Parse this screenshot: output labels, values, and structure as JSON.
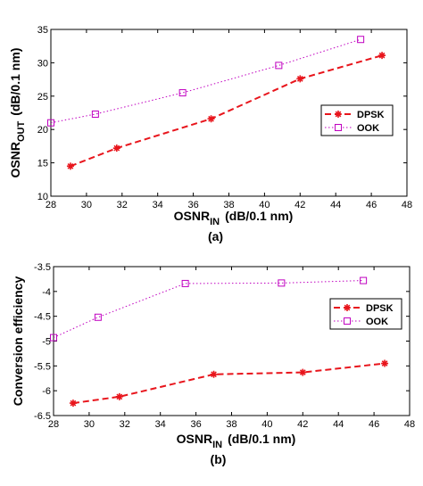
{
  "chart_data": [
    {
      "type": "line",
      "caption": "(a)",
      "xlabel": "OSNR",
      "xlabel_sub": "IN",
      "xlabel_unit": "(dB/0.1 nm)",
      "ylabel": "OSNR",
      "ylabel_sub": "OUT",
      "ylabel_unit": "(dB/0.1 nm)",
      "xlim": [
        28,
        48
      ],
      "ylim": [
        10,
        35
      ],
      "xticks": [
        28,
        30,
        32,
        34,
        36,
        38,
        40,
        42,
        44,
        46,
        48
      ],
      "yticks": [
        10,
        15,
        20,
        25,
        30,
        35
      ],
      "legend_position": "right",
      "series": [
        {
          "name": "DPSK",
          "color": "#e8151c",
          "x": [
            29.1,
            31.7,
            37.0,
            42.0,
            46.6
          ],
          "y": [
            14.5,
            17.2,
            21.6,
            27.6,
            31.1
          ]
        },
        {
          "name": "OOK",
          "color": "#c000c0",
          "x": [
            28.0,
            30.5,
            35.4,
            40.8,
            45.4
          ],
          "y": [
            21.0,
            22.3,
            25.5,
            29.6,
            33.5
          ]
        }
      ]
    },
    {
      "type": "line",
      "caption": "(b)",
      "xlabel": "OSNR",
      "xlabel_sub": "IN",
      "xlabel_unit": "(dB/0.1 nm)",
      "ylabel": "Conversion efficiency",
      "xlim": [
        28,
        48
      ],
      "ylim": [
        -6.5,
        -3.5
      ],
      "xticks": [
        28,
        30,
        32,
        34,
        36,
        38,
        40,
        42,
        44,
        46,
        48
      ],
      "yticks": [
        -6.5,
        -6,
        -5.5,
        -5,
        -4.5,
        -4,
        -3.5
      ],
      "legend_position": "right",
      "series": [
        {
          "name": "DPSK",
          "color": "#e8151c",
          "x": [
            29.1,
            31.7,
            37.0,
            42.0,
            46.6
          ],
          "y": [
            -6.25,
            -6.12,
            -5.67,
            -5.63,
            -5.45
          ]
        },
        {
          "name": "OOK",
          "color": "#c000c0",
          "x": [
            28.0,
            30.5,
            35.4,
            40.8,
            45.4
          ],
          "y": [
            -4.93,
            -4.52,
            -3.84,
            -3.83,
            -3.78
          ]
        }
      ]
    }
  ]
}
